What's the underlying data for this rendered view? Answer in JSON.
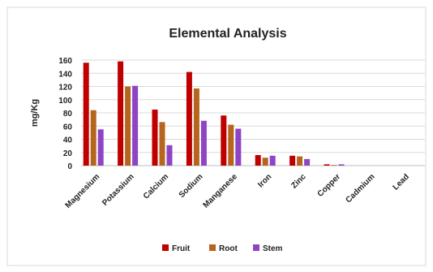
{
  "chart_data": {
    "type": "bar",
    "title": "Elemental Analysis",
    "xlabel": "",
    "ylabel": "mg/Kg",
    "ylim": [
      0,
      160
    ],
    "yticks": [
      "160",
      "140",
      "120",
      "100",
      "80",
      "60",
      "40",
      "20",
      "0"
    ],
    "grid": true,
    "legend_position": "bottom",
    "categories": [
      "Magnesium",
      "Potassium",
      "Calcium",
      "Sodium",
      "Manganese",
      "Iron",
      "Zinc",
      "Copper",
      "Cadmium",
      "Lead"
    ],
    "series": [
      {
        "name": "Fruit",
        "color": "#c00000",
        "values": [
          156,
          158,
          85,
          142,
          76,
          16,
          15,
          2,
          0,
          0
        ]
      },
      {
        "name": "Root",
        "color": "#b5651d",
        "values": [
          84,
          120,
          66,
          117,
          62,
          12,
          14,
          1,
          0,
          0
        ]
      },
      {
        "name": "Stem",
        "color": "#8e44c4",
        "values": [
          55,
          121,
          31,
          68,
          56,
          15,
          10,
          2,
          0,
          0
        ]
      }
    ]
  }
}
